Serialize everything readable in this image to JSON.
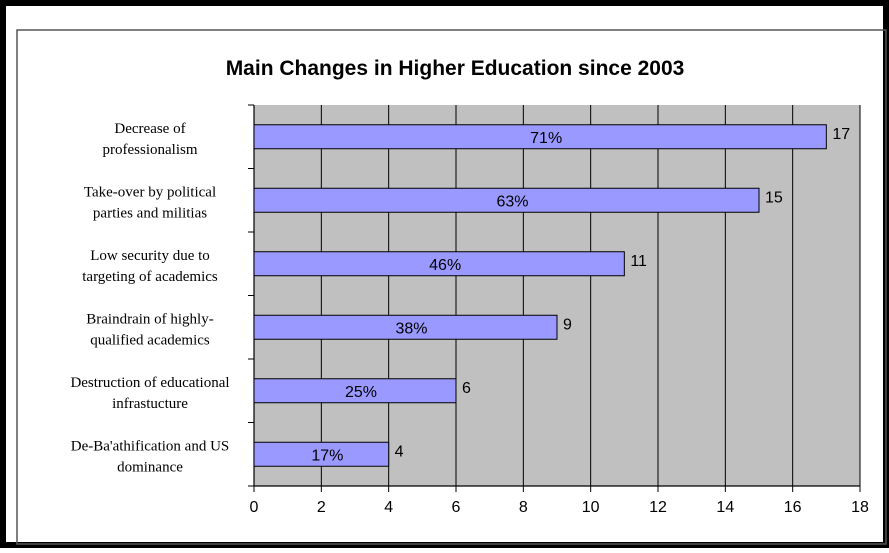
{
  "chart_data": {
    "type": "bar",
    "orientation": "horizontal",
    "title": "Main Changes in Higher Education since 2003",
    "categories": [
      [
        "Decrease of",
        "professionalism"
      ],
      [
        "Take-over by political",
        "parties and militias"
      ],
      [
        "Low security due to",
        "targeting of academics"
      ],
      [
        "Braindrain of highly-",
        "qualified academics"
      ],
      [
        "Destruction of educational",
        "infrastucture"
      ],
      [
        "De-Ba'athification and US",
        "dominance"
      ]
    ],
    "values": [
      17,
      15,
      11,
      9,
      6,
      4
    ],
    "percent_labels": [
      "71%",
      "63%",
      "46%",
      "38%",
      "25%",
      "17%"
    ],
    "xlim": [
      0,
      18
    ],
    "xticks": [
      0,
      2,
      4,
      6,
      8,
      10,
      12,
      14,
      16,
      18
    ],
    "grid": "vertical",
    "colors": {
      "bar_fill": "#9999ff",
      "bar_stroke": "#000000",
      "plot_background": "#c0c0c0"
    }
  }
}
